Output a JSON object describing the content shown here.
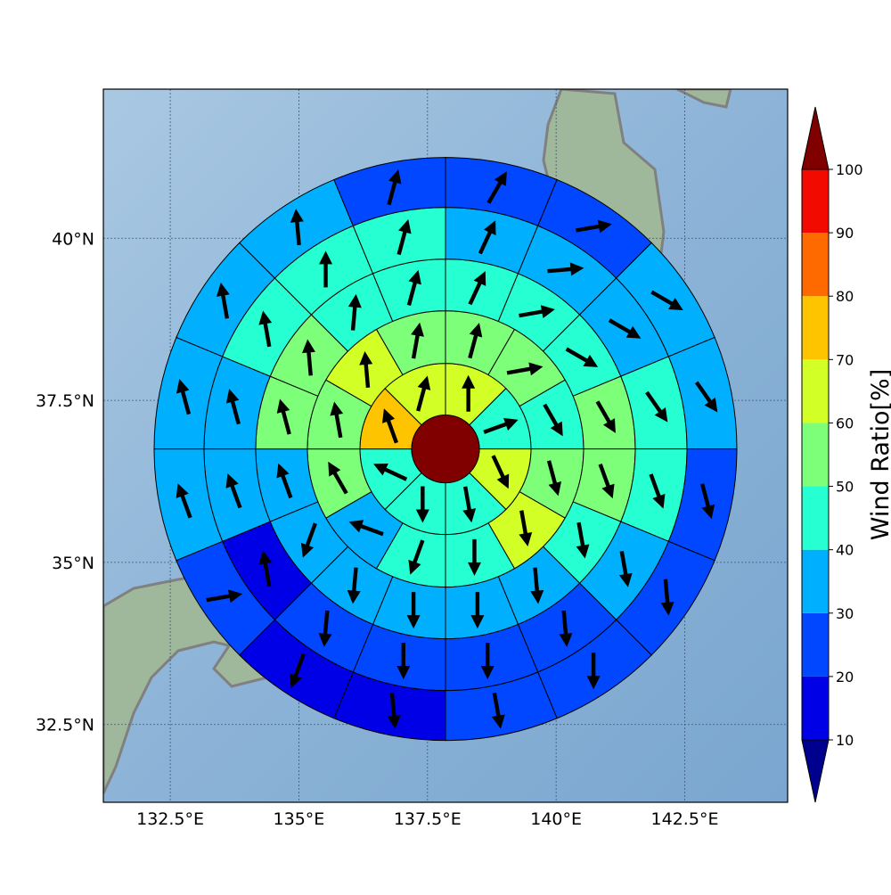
{
  "chart_data": {
    "type": "polar-wind-rose-map",
    "map": {
      "lon_range": [
        131.2,
        144.5
      ],
      "lat_range": [
        31.3,
        42.3
      ],
      "x_ticks": [
        {
          "value": 132.5,
          "label": "132.5°E"
        },
        {
          "value": 135.0,
          "label": "135°E"
        },
        {
          "value": 137.5,
          "label": "137.5°E"
        },
        {
          "value": 140.0,
          "label": "140°E"
        },
        {
          "value": 142.5,
          "label": "142.5°E"
        }
      ],
      "y_ticks": [
        {
          "value": 32.5,
          "label": "32.5°N"
        },
        {
          "value": 35.0,
          "label": "35°N"
        },
        {
          "value": 37.5,
          "label": "37.5°N"
        },
        {
          "value": 40.0,
          "label": "40°N"
        }
      ],
      "grid": true
    },
    "rose": {
      "center_lon": 137.85,
      "center_lat": 36.75,
      "center_value": 100,
      "rings": [
        {
          "sectors": 8,
          "values": [
            65,
            45,
            65,
            40,
            40,
            40,
            75,
            65
          ],
          "arrows": [
            0,
            70,
            155,
            170,
            180,
            295,
            340,
            15
          ]
        },
        {
          "sectors": 12,
          "values": [
            55,
            55,
            45,
            55,
            65,
            45,
            40,
            35,
            50,
            50,
            65,
            55
          ],
          "arrows": [
            15,
            80,
            150,
            165,
            170,
            180,
            200,
            290,
            330,
            350,
            355,
            10
          ]
        },
        {
          "sectors": 16,
          "values": [
            45,
            45,
            45,
            55,
            55,
            40,
            35,
            30,
            35,
            30,
            35,
            35,
            50,
            50,
            45,
            45
          ],
          "arrows": [
            25,
            80,
            120,
            150,
            160,
            170,
            175,
            180,
            180,
            185,
            200,
            340,
            345,
            355,
            5,
            15
          ]
        },
        {
          "sectors": 16,
          "values": [
            35,
            35,
            35,
            45,
            40,
            35,
            25,
            25,
            25,
            25,
            15,
            35,
            35,
            40,
            45,
            40
          ],
          "arrows": [
            25,
            85,
            120,
            145,
            160,
            170,
            175,
            180,
            180,
            185,
            350,
            340,
            345,
            350,
            0,
            15
          ]
        },
        {
          "sectors": 16,
          "values": [
            25,
            25,
            35,
            35,
            25,
            25,
            25,
            25,
            15,
            15,
            20,
            35,
            35,
            35,
            35,
            25
          ],
          "arrows": [
            30,
            80,
            120,
            145,
            165,
            175,
            180,
            170,
            175,
            200,
            80,
            340,
            345,
            350,
            355,
            15
          ]
        }
      ]
    },
    "colorbar": {
      "label": "Wind Ratio[%]",
      "ticks": [
        10,
        20,
        30,
        40,
        50,
        60,
        70,
        80,
        90,
        100
      ],
      "bins": [
        {
          "lo": 10,
          "hi": 20,
          "color": "#0000e6"
        },
        {
          "lo": 20,
          "hi": 30,
          "color": "#0047ff"
        },
        {
          "lo": 30,
          "hi": 40,
          "color": "#00b0ff"
        },
        {
          "lo": 40,
          "hi": 50,
          "color": "#26ffd1"
        },
        {
          "lo": 50,
          "hi": 60,
          "color": "#7dff7a"
        },
        {
          "lo": 60,
          "hi": 70,
          "color": "#d1ff26"
        },
        {
          "lo": 70,
          "hi": 80,
          "color": "#ffc400"
        },
        {
          "lo": 80,
          "hi": 90,
          "color": "#ff6a00"
        },
        {
          "lo": 90,
          "hi": 100,
          "color": "#f20a00"
        }
      ],
      "under_color": "#00008f",
      "over_color": "#800000"
    }
  }
}
